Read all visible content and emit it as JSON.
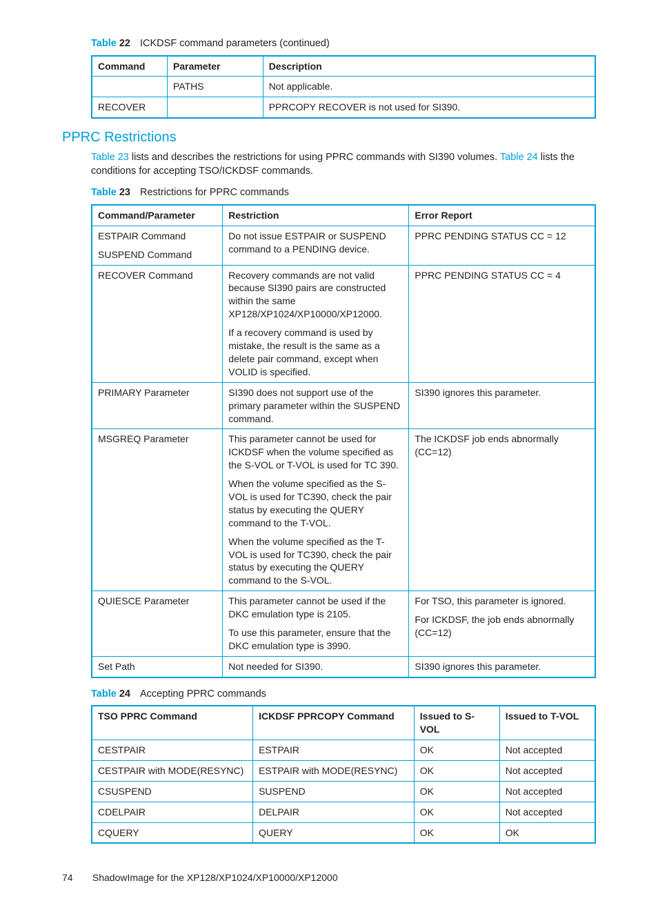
{
  "colors": {
    "accent": "#009fda",
    "text": "#222222",
    "background": "#ffffff"
  },
  "table22": {
    "label": "Table",
    "number": "22",
    "title": "ICKDSF command parameters (continued)",
    "headers": [
      "Command",
      "Parameter",
      "Description"
    ],
    "colwidths": [
      "15%",
      "19%",
      "66%"
    ],
    "rows": [
      [
        "",
        "PATHS",
        "Not applicable."
      ],
      [
        "RECOVER",
        "",
        "PPRCOPY RECOVER is not used for SI390."
      ]
    ]
  },
  "section": {
    "heading": "PPRC Restrictions",
    "para_parts": [
      {
        "type": "link",
        "text": "Table 23"
      },
      {
        "type": "text",
        "text": " lists and describes the restrictions for using PPRC commands with SI390 volumes. "
      },
      {
        "type": "link",
        "text": "Table 24"
      },
      {
        "type": "text",
        "text": " lists the conditions for accepting TSO/ICKDSF commands."
      }
    ]
  },
  "table23": {
    "label": "Table",
    "number": "23",
    "title": "Restrictions for PPRC commands",
    "headers": [
      "Command/Parameter",
      "Restriction",
      "Error Report"
    ],
    "colwidths": [
      "26%",
      "37%",
      "37%"
    ],
    "rows": [
      {
        "c0": [
          "ESTPAIR Command",
          "SUSPEND Command"
        ],
        "c1": [
          "Do not issue ESTPAIR or SUSPEND command to a PENDING device."
        ],
        "c2": [
          "PPRC PENDING STATUS CC = 12"
        ]
      },
      {
        "c0": [
          "RECOVER Command"
        ],
        "c1": [
          "Recovery commands are not valid because SI390 pairs are constructed within the same XP128/XP1024/XP10000/XP12000.",
          "If a recovery command is used by mistake, the result is the same as a delete pair command, except when VOLID is specified."
        ],
        "c2": [
          "PPRC PENDING STATUS CC = 4"
        ]
      },
      {
        "c0": [
          "PRIMARY Parameter"
        ],
        "c1": [
          "SI390 does not support use of the primary parameter within the SUSPEND command."
        ],
        "c2": [
          "SI390 ignores this parameter."
        ]
      },
      {
        "c0": [
          "MSGREQ Parameter"
        ],
        "c1": [
          "This parameter cannot be used for ICKDSF when the volume specified as the S-VOL or T-VOL is used for TC 390.",
          "When the volume specified as the S-VOL is used for TC390, check the pair status by executing the QUERY command to the T-VOL.",
          "When the volume specified as the T-VOL is used for TC390, check the pair status by executing the QUERY command to the S-VOL."
        ],
        "c2": [
          "The ICKDSF job ends abnormally (CC=12)"
        ]
      },
      {
        "c0": [
          "QUIESCE Parameter"
        ],
        "c1": [
          "This parameter cannot be used if the DKC emulation type is 2105.",
          "To use this parameter, ensure that the DKC emulation type is 3990."
        ],
        "c2": [
          "For TSO, this parameter is ignored.",
          "For ICKDSF, the job ends abnormally (CC=12)"
        ]
      },
      {
        "c0": [
          "Set Path"
        ],
        "c1": [
          "Not needed for SI390."
        ],
        "c2": [
          "SI390 ignores this parameter."
        ]
      }
    ]
  },
  "table24": {
    "label": "Table",
    "number": "24",
    "title": "Accepting PPRC commands",
    "headers": [
      "TSO PPRC Command",
      "ICKDSF PPRCOPY Command",
      "Issued to S-VOL",
      "Issued to T-VOL"
    ],
    "colwidths": [
      "32%",
      "32%",
      "17%",
      "19%"
    ],
    "rows": [
      [
        "CESTPAIR",
        "ESTPAIR",
        "OK",
        "Not accepted"
      ],
      [
        "CESTPAIR with MODE(RESYNC)",
        "ESTPAIR with MODE(RESYNC)",
        "OK",
        "Not accepted"
      ],
      [
        "CSUSPEND",
        "SUSPEND",
        "OK",
        "Not accepted"
      ],
      [
        "CDELPAIR",
        "DELPAIR",
        "OK",
        "Not accepted"
      ],
      [
        "CQUERY",
        "QUERY",
        "OK",
        "OK"
      ]
    ]
  },
  "footer": {
    "page": "74",
    "title": "ShadowImage for the XP128/XP1024/XP10000/XP12000"
  }
}
